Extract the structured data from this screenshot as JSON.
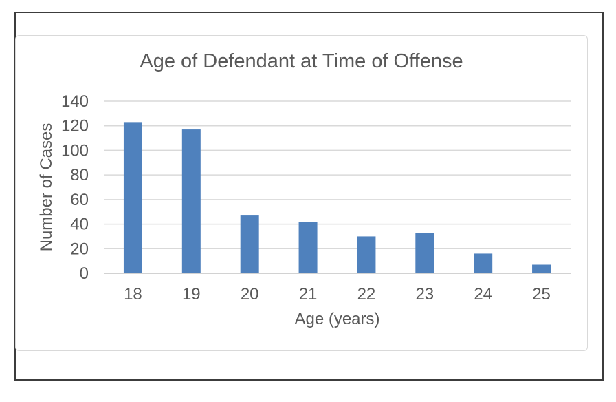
{
  "chart_data": {
    "type": "bar",
    "title": "Age of Defendant at Time of Offense",
    "xlabel": "Age (years)",
    "ylabel": "Number of Cases",
    "categories": [
      "18",
      "19",
      "20",
      "21",
      "22",
      "23",
      "24",
      "25"
    ],
    "values": [
      123,
      117,
      47,
      42,
      30,
      33,
      16,
      7
    ],
    "ylim": [
      0,
      140
    ],
    "ytick_step": 20,
    "ytick_labels": [
      "0",
      "20",
      "40",
      "60",
      "80",
      "100",
      "120",
      "140"
    ],
    "grid": true,
    "legend_position": "none",
    "colors": {
      "bar": "#4F81BD",
      "text": "#595959",
      "gridline": "#D9D9D9",
      "axis_line": "#C3C3C3",
      "chart_border": "#D9D9D9",
      "frame_border": "#3C3C3C",
      "background": "#FFFFFF"
    }
  }
}
